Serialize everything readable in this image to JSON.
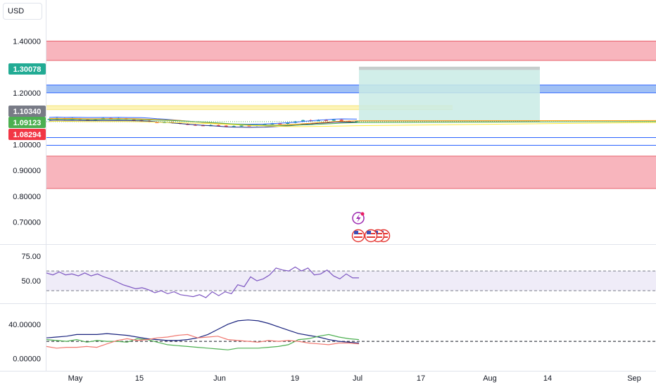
{
  "currency_button": {
    "label": "USD"
  },
  "price_badges": {
    "tp": {
      "label": "1.30078",
      "value": 1.30078,
      "color": "#22ab94"
    },
    "high": {
      "label": "1.10340",
      "value": 1.1034,
      "color": "#787b86"
    },
    "last": {
      "label": "1.09123",
      "value": 1.09123,
      "color": "#4caf50"
    },
    "low": {
      "label": "1.08294",
      "value": 1.08294,
      "color": "#f23645"
    }
  },
  "colors": {
    "zone_red": "#f7a8b1",
    "zone_red_line": "#e8606c",
    "zone_blue": "#8fb5f2",
    "zone_blue_line": "#2962ff",
    "zone_yellow": "#fdf3b0",
    "target_fill": "#c9ebe5",
    "stop_fill": "#c4c4c4",
    "rsi_line": "#7e57c2",
    "rsi_band": "#efecf8",
    "adx_line": "#1a237e",
    "di_plus": "#4caf50",
    "di_minus": "#f0776f",
    "event_icon": "#9c27b0",
    "flag_red": "#e53935"
  },
  "chart_data": [
    {
      "type": "candlestick",
      "title": "",
      "ylim": [
        0.62,
        1.45
      ],
      "y_ticks": [
        {
          "label": "1.40000",
          "value": 1.4
        },
        {
          "label": "1.20000",
          "value": 1.2
        },
        {
          "label": "1.00000",
          "value": 1.0
        },
        {
          "label": "0.90000",
          "value": 0.9
        },
        {
          "label": "0.80000",
          "value": 0.8
        },
        {
          "label": "0.70000",
          "value": 0.7
        }
      ],
      "x_ticks": [
        "May",
        "15",
        "Jun",
        "19",
        "Jul",
        "17",
        "Aug",
        "14",
        "Sep"
      ],
      "zones": [
        {
          "kind": "supply",
          "from": 1.325,
          "to": 1.4,
          "color": "red"
        },
        {
          "kind": "resistance",
          "from": 1.2,
          "to": 1.23,
          "color": "blue"
        },
        {
          "kind": "level",
          "from": 1.135,
          "to": 1.15,
          "color": "yellow"
        },
        {
          "kind": "demand",
          "from": 0.83,
          "to": 0.955,
          "color": "red"
        }
      ],
      "lines": [
        1.027,
        0.997
      ],
      "position": {
        "entry": 1.09123,
        "target": 1.30078,
        "stop": 1.2885
      },
      "candles": [
        [
          1.096,
          1.099,
          1.102,
          1.094
        ],
        [
          1.099,
          1.101,
          1.104,
          1.096
        ],
        [
          1.101,
          1.098,
          1.103,
          1.095
        ],
        [
          1.098,
          1.1,
          1.103,
          1.096
        ],
        [
          1.1,
          1.097,
          1.102,
          1.094
        ],
        [
          1.097,
          1.095,
          1.099,
          1.092
        ],
        [
          1.095,
          1.098,
          1.1,
          1.093
        ],
        [
          1.098,
          1.102,
          1.104,
          1.096
        ],
        [
          1.102,
          1.099,
          1.104,
          1.097
        ],
        [
          1.099,
          1.101,
          1.103,
          1.097
        ],
        [
          1.101,
          1.097,
          1.102,
          1.095
        ],
        [
          1.097,
          1.094,
          1.099,
          1.092
        ],
        [
          1.094,
          1.092,
          1.096,
          1.089
        ],
        [
          1.092,
          1.087,
          1.094,
          1.085
        ],
        [
          1.087,
          1.085,
          1.089,
          1.083
        ],
        [
          1.085,
          1.087,
          1.09,
          1.083
        ],
        [
          1.087,
          1.084,
          1.089,
          1.081
        ],
        [
          1.084,
          1.08,
          1.086,
          1.078
        ],
        [
          1.08,
          1.077,
          1.082,
          1.075
        ],
        [
          1.077,
          1.075,
          1.079,
          1.072
        ],
        [
          1.075,
          1.073,
          1.077,
          1.071
        ],
        [
          1.073,
          1.075,
          1.078,
          1.071
        ],
        [
          1.075,
          1.073,
          1.077,
          1.07
        ],
        [
          1.073,
          1.069,
          1.075,
          1.067
        ],
        [
          1.069,
          1.071,
          1.074,
          1.067
        ],
        [
          1.071,
          1.074,
          1.076,
          1.069
        ],
        [
          1.074,
          1.072,
          1.076,
          1.07
        ],
        [
          1.072,
          1.076,
          1.078,
          1.07
        ],
        [
          1.076,
          1.079,
          1.081,
          1.074
        ],
        [
          1.079,
          1.082,
          1.084,
          1.077
        ],
        [
          1.082,
          1.08,
          1.084,
          1.078
        ],
        [
          1.08,
          1.084,
          1.086,
          1.078
        ],
        [
          1.084,
          1.089,
          1.091,
          1.082
        ],
        [
          1.089,
          1.094,
          1.096,
          1.087
        ],
        [
          1.094,
          1.092,
          1.097,
          1.09
        ],
        [
          1.092,
          1.095,
          1.097,
          1.09
        ],
        [
          1.095,
          1.093,
          1.098,
          1.091
        ],
        [
          1.093,
          1.096,
          1.099,
          1.091
        ],
        [
          1.096,
          1.091,
          1.098,
          1.089
        ],
        [
          1.091,
          1.088,
          1.093,
          1.086
        ],
        [
          1.088,
          1.091,
          1.093,
          1.086
        ]
      ]
    },
    {
      "type": "line",
      "title": "",
      "ylim": [
        28,
        85
      ],
      "y_ticks": [
        {
          "label": "75.00",
          "value": 75
        },
        {
          "label": "50.00",
          "value": 50
        }
      ],
      "bands": [
        40,
        60
      ],
      "series": [
        {
          "values": [
            58,
            56,
            59,
            56,
            57,
            55,
            58,
            55,
            57,
            54,
            52,
            49,
            46,
            44,
            42,
            43,
            41,
            38,
            40,
            37,
            39,
            36,
            35,
            34,
            36,
            33,
            39,
            35,
            39,
            37,
            46,
            44,
            54,
            50,
            52,
            56,
            63,
            61,
            60,
            64,
            60,
            63,
            56,
            57,
            61,
            55,
            52,
            57,
            53,
            53
          ]
        }
      ]
    },
    {
      "type": "line",
      "title": "",
      "ylim": [
        -12,
        62
      ],
      "y_ticks": [
        {
          "label": "40.00000",
          "value": 40
        },
        {
          "label": "0.00000",
          "value": 0
        }
      ],
      "reference": 20,
      "series": [
        {
          "values": [
            24,
            25,
            26,
            28,
            28,
            28,
            29,
            28,
            27,
            25,
            23,
            22,
            21,
            21,
            22,
            24,
            28,
            34,
            40,
            44,
            45,
            44,
            41,
            37,
            33,
            29,
            27,
            25,
            22,
            20,
            19,
            18
          ]
        },
        {
          "values": [
            22,
            21,
            20,
            22,
            19,
            21,
            20,
            20,
            19,
            23,
            22,
            19,
            16,
            15,
            14,
            13,
            12,
            11,
            10,
            12,
            12,
            12,
            13,
            14,
            16,
            22,
            23,
            26,
            28,
            25,
            23,
            22
          ]
        },
        {
          "values": [
            14,
            12,
            13,
            13,
            14,
            13,
            17,
            21,
            23,
            21,
            22,
            24,
            25,
            27,
            28,
            24,
            25,
            26,
            22,
            21,
            20,
            19,
            21,
            20,
            21,
            20,
            18,
            17,
            16,
            18,
            18,
            17
          ]
        }
      ]
    }
  ]
}
